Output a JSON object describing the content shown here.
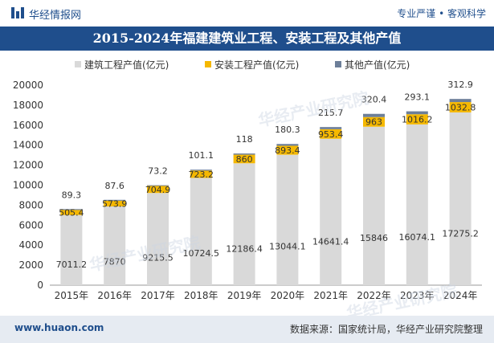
{
  "header": {
    "brand": "华经情报网",
    "slogan": "专业严谨 • 客观科学"
  },
  "colors": {
    "construction": "#d9d9d9",
    "installation": "#f5b800",
    "other": "#6d7f99",
    "brand": "#1f4e8c"
  },
  "chart_data": {
    "type": "bar",
    "stacked": true,
    "title": "2015-2024年福建建筑业工程、安装工程及其他产值",
    "xlabel": "",
    "ylabel": "",
    "ylim": [
      0,
      20000
    ],
    "yticks": [
      0,
      2000,
      4000,
      6000,
      8000,
      10000,
      12000,
      14000,
      16000,
      18000,
      20000
    ],
    "legend_position": "top",
    "categories": [
      "2015年",
      "2016年",
      "2017年",
      "2018年",
      "2019年",
      "2020年",
      "2021年",
      "2022年",
      "2023年",
      "2024年"
    ],
    "series": [
      {
        "name": "建筑工程产值(亿元)",
        "values": [
          7011.2,
          7870,
          9215.5,
          10724.5,
          12186.4,
          13044.1,
          14641.4,
          15846,
          16074.1,
          17275.2
        ]
      },
      {
        "name": "安装工程产值(亿元)",
        "values": [
          505.4,
          573.9,
          704.9,
          723.2,
          860,
          893.4,
          953.4,
          963,
          1016.2,
          1032.8
        ]
      },
      {
        "name": "其他产值(亿元)",
        "values": [
          89.3,
          87.6,
          73.2,
          101.1,
          118,
          180.3,
          215.7,
          320.4,
          293.1,
          312.9
        ]
      }
    ]
  },
  "watermark": {
    "text": "华经产业研究院",
    "url": "www.huaon.com"
  },
  "footer": {
    "website": "www.huaon.com",
    "source": "数据来源：国家统计局，华经产业研究院整理"
  }
}
